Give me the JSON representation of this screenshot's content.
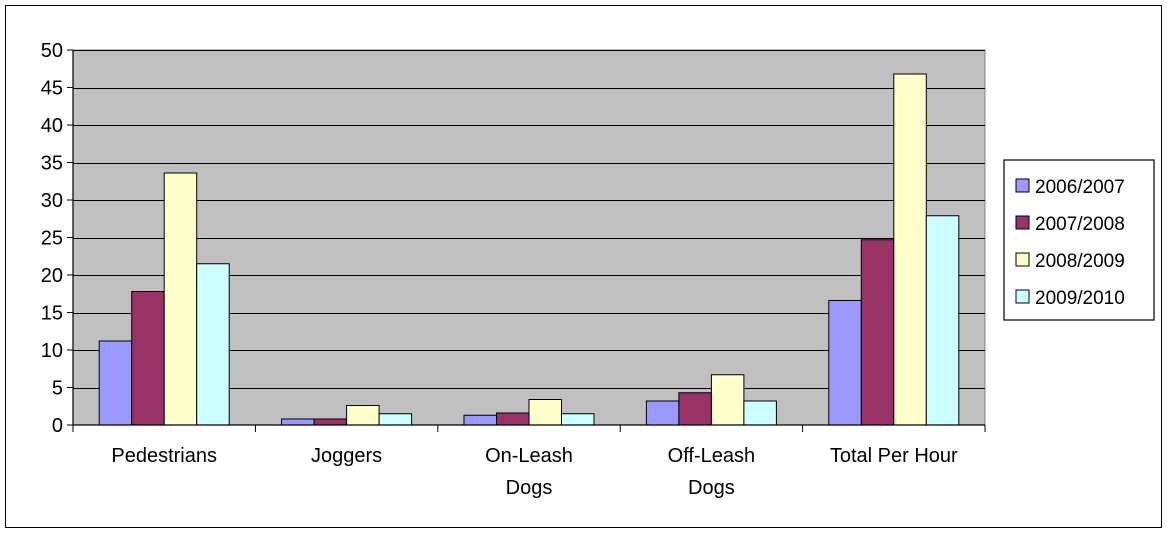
{
  "chart_data": {
    "type": "bar",
    "title": "",
    "xlabel": "",
    "ylabel": "",
    "categories": [
      [
        "Pedestrians"
      ],
      [
        "Joggers"
      ],
      [
        "On-Leash",
        "Dogs"
      ],
      [
        "Off-Leash",
        "Dogs"
      ],
      [
        "Total Per Hour"
      ]
    ],
    "series": [
      {
        "name": "2006/2007",
        "color": "#9999ff",
        "values": [
          11.2,
          0.8,
          1.3,
          3.2,
          16.6
        ]
      },
      {
        "name": "2007/2008",
        "color": "#993366",
        "values": [
          17.8,
          0.8,
          1.6,
          4.3,
          24.7
        ]
      },
      {
        "name": "2008/2009",
        "color": "#ffffcc",
        "values": [
          33.6,
          2.6,
          3.4,
          6.7,
          46.8
        ]
      },
      {
        "name": "2009/2010",
        "color": "#ccffff",
        "values": [
          21.5,
          1.5,
          1.5,
          3.2,
          27.9
        ]
      }
    ],
    "ylim": [
      0,
      50
    ],
    "yticks": [
      0,
      5,
      10,
      15,
      20,
      25,
      30,
      35,
      40,
      45,
      50
    ],
    "grid": true,
    "plot_background": "#c0c0c0",
    "legend": "right"
  }
}
